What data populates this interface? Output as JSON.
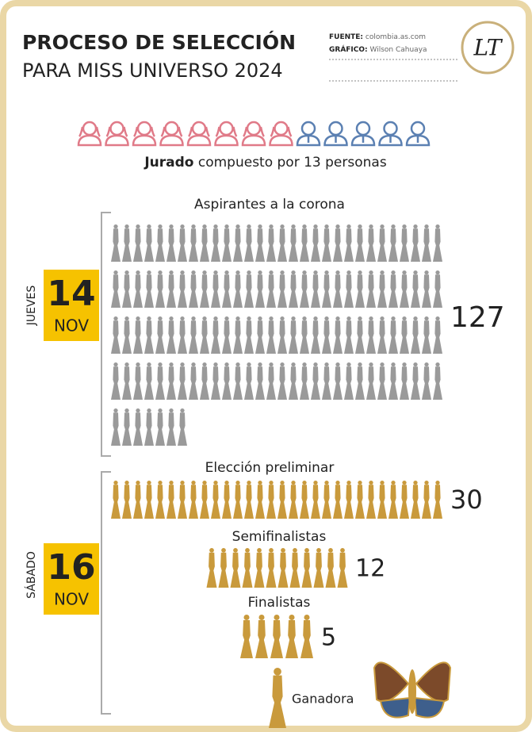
{
  "header": {
    "title_line1": "PROCESO DE SELECCIÓN",
    "title_line2": "PARA MISS UNIVERSO 2024",
    "source_label": "FUENTE:",
    "source": "colombia.as.com",
    "graphic_label": "GRÁFICO:",
    "graphic": "Wilson Cahuaya",
    "logo": "LT"
  },
  "jury": {
    "label_bold": "Jurado",
    "label_rest": "compuesto por 13 personas",
    "groups": [
      {
        "color": "#e07a88",
        "count": 8
      },
      {
        "color": "#5b80b2",
        "count": 5
      }
    ]
  },
  "days": [
    {
      "weekday": "JUEVES",
      "day": "14",
      "month": "NOV",
      "stages": [
        {
          "label": "Aspirantes a la corona",
          "count": 127,
          "value_label": "127",
          "color": "#9a9a9a"
        }
      ]
    },
    {
      "weekday": "SÁBADO",
      "day": "16",
      "month": "NOV",
      "stages": [
        {
          "label": "Elección preliminar",
          "count": 30,
          "value_label": "30",
          "color": "#c99a3c"
        },
        {
          "label": "Semifinalistas",
          "count": 12,
          "value_label": "12",
          "color": "#c99a3c"
        },
        {
          "label": "Finalistas",
          "count": 5,
          "value_label": "5",
          "color": "#c99a3c"
        },
        {
          "label": "Ganadora",
          "count": 1,
          "color": "#c99a3c"
        }
      ]
    }
  ]
}
